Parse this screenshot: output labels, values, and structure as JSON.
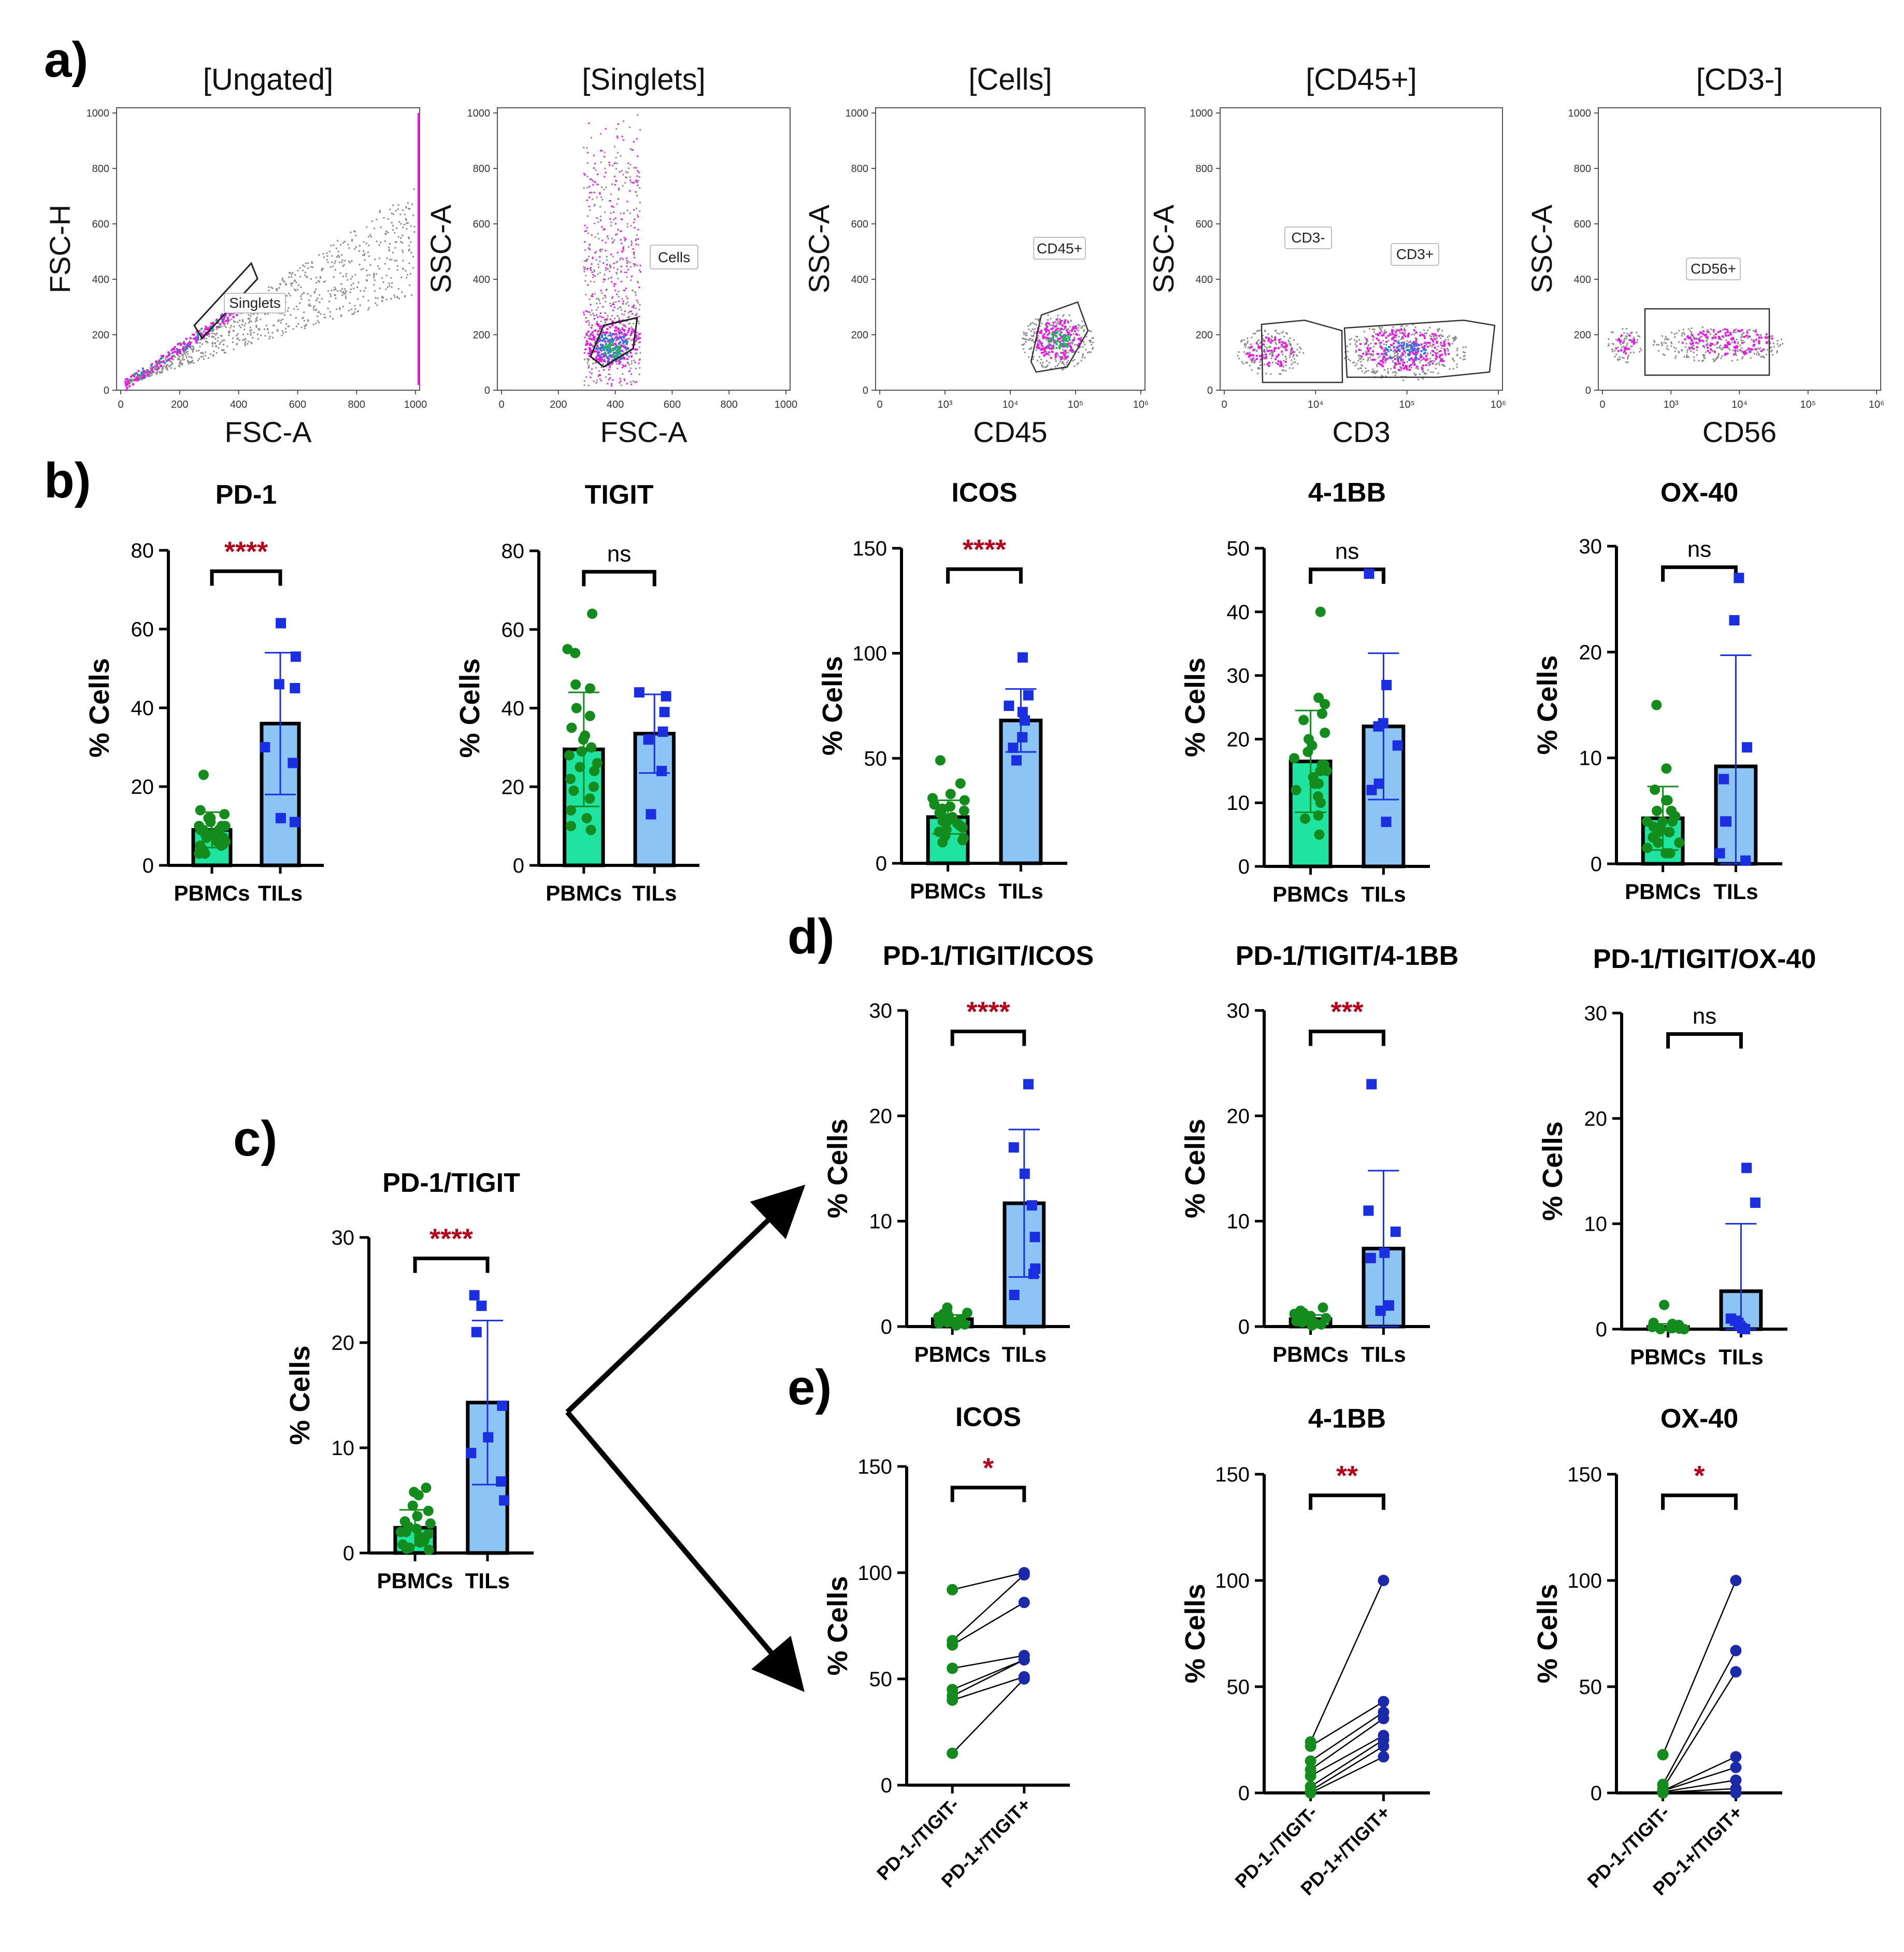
{
  "colors": {
    "pbmc_bar": "#1fe3a0",
    "til_bar": "#8cc4f5",
    "pbmc_point": "#138b1d",
    "til_point": "#1a2fe0",
    "til_err": "#1a2fe0",
    "pbmc_err": "#138b1d",
    "sig": "#b3001b",
    "flow_gray": "#8a8a8a",
    "flow_magenta": "#e21ee0",
    "flow_blue": "#2e7bd6",
    "flow_green": "#1bb85a"
  },
  "panel_letters": [
    "a)",
    "b)",
    "c)",
    "d)",
    "e)"
  ],
  "flow_panels": [
    {
      "title": "[Ungated]",
      "xlabel": "FSC-A",
      "ylabel": "FSC-H",
      "xticks": [
        "0",
        "200",
        "400",
        "600",
        "800",
        "1000"
      ],
      "yticks": [
        "0",
        "200",
        "400",
        "600",
        "800",
        "1000"
      ],
      "gate": "Singlets"
    },
    {
      "title": "[Singlets]",
      "xlabel": "FSC-A",
      "ylabel": "SSC-A",
      "xticks": [
        "0",
        "200",
        "400",
        "600",
        "800",
        "1000"
      ],
      "yticks": [
        "0",
        "200",
        "400",
        "600",
        "800",
        "1000"
      ],
      "gate": "Cells"
    },
    {
      "title": "[Cells]",
      "xlabel": "CD45",
      "ylabel": "SSC-A",
      "xticks": [
        "0",
        "10³",
        "10⁴",
        "10⁵",
        "10⁶"
      ],
      "yticks": [
        "0",
        "200",
        "400",
        "600",
        "800",
        "1000"
      ],
      "gate": "CD45+"
    },
    {
      "title": "[CD45+]",
      "xlabel": "CD3",
      "ylabel": "SSC-A",
      "xticks": [
        "0",
        "10⁴",
        "10⁵",
        "10⁶"
      ],
      "yticks": [
        "0",
        "200",
        "400",
        "600",
        "800",
        "1000"
      ],
      "gate": "CD3-",
      "gate2": "CD3+"
    },
    {
      "title": "[CD3-]",
      "xlabel": "CD56",
      "ylabel": "SSC-A",
      "xticks": [
        "0",
        "10³",
        "10⁴",
        "10⁵",
        "10⁶"
      ],
      "yticks": [
        "0",
        "200",
        "400",
        "600",
        "800",
        "1000"
      ],
      "gate": "CD56+"
    }
  ],
  "chart_data": [
    {
      "id": "b-pd1",
      "type": "bar",
      "title": "PD-1",
      "ylabel": "% Cells",
      "ylim": [
        0,
        80
      ],
      "yticks": [
        0,
        20,
        40,
        60,
        80
      ],
      "categories": [
        "PBMCs",
        "TILs"
      ],
      "means": [
        9,
        36
      ],
      "sd": [
        4.5,
        18
      ],
      "sig": "****",
      "points": [
        [
          23,
          14,
          13,
          12,
          12,
          11,
          10,
          10,
          10,
          9,
          9,
          9,
          8,
          8,
          8,
          7,
          7,
          6,
          6,
          5,
          5,
          4,
          3,
          3
        ],
        [
          61.5,
          53,
          46,
          45,
          30,
          26,
          12,
          11
        ]
      ]
    },
    {
      "id": "b-tigit",
      "type": "bar",
      "title": "TIGIT",
      "ylabel": "% Cells",
      "ylim": [
        0,
        80
      ],
      "yticks": [
        0,
        20,
        40,
        60,
        80
      ],
      "categories": [
        "PBMCs",
        "TILs"
      ],
      "means": [
        29.5,
        33.5
      ],
      "sd": [
        14.5,
        10
      ],
      "sig": "ns",
      "points": [
        [
          64,
          55,
          54,
          46,
          45,
          40,
          38,
          35,
          33,
          32,
          30,
          29,
          28,
          26,
          25,
          24,
          22,
          20,
          19,
          17,
          14,
          12,
          10,
          9
        ],
        [
          44,
          43,
          39,
          34,
          32,
          24,
          13
        ]
      ]
    },
    {
      "id": "b-icos",
      "type": "bar",
      "title": "ICOS",
      "ylabel": "% Cells",
      "ylim": [
        0,
        150
      ],
      "yticks": [
        0,
        50,
        100,
        150
      ],
      "categories": [
        "PBMCs",
        "TILs"
      ],
      "means": [
        22,
        68
      ],
      "sd": [
        8,
        15
      ],
      "sig": "****",
      "points": [
        [
          49,
          38,
          33,
          31,
          30,
          28,
          27,
          26,
          25,
          24,
          23,
          22,
          21,
          20,
          20,
          19,
          18,
          17,
          16,
          15,
          13,
          12,
          11,
          10
        ],
        [
          98,
          80,
          75,
          72,
          68,
          60,
          55,
          49
        ]
      ]
    },
    {
      "id": "b-41bb",
      "type": "bar",
      "title": "4-1BB",
      "ylabel": "% Cells",
      "ylim": [
        0,
        50
      ],
      "yticks": [
        0,
        10,
        20,
        30,
        40,
        50
      ],
      "categories": [
        "PBMCs",
        "TILs"
      ],
      "means": [
        16.5,
        22
      ],
      "sd": [
        8,
        11.5
      ],
      "sig": "ns",
      "points": [
        [
          40,
          26.5,
          25.5,
          24,
          23,
          21,
          20,
          19,
          18,
          17,
          16,
          16,
          15,
          15,
          14,
          13,
          13,
          12,
          11,
          10,
          8,
          7.5,
          5
        ],
        [
          46,
          28.5,
          22.5,
          22,
          19,
          13,
          12,
          7
        ]
      ]
    },
    {
      "id": "b-ox40",
      "type": "bar",
      "title": "OX-40",
      "ylabel": "% Cells",
      "ylim": [
        0,
        30
      ],
      "yticks": [
        0,
        10,
        20,
        30
      ],
      "categories": [
        "PBMCs",
        "TILs"
      ],
      "means": [
        4.3,
        9.2
      ],
      "sd": [
        3,
        10.5
      ],
      "sig": "ns",
      "points": [
        [
          15,
          9,
          7,
          6,
          6,
          5,
          5,
          5,
          4.5,
          4,
          4,
          4,
          3.5,
          3.5,
          3,
          3,
          3,
          2.5,
          2,
          2,
          1.5,
          1,
          1
        ],
        [
          27,
          23,
          11,
          8,
          4,
          4,
          1,
          0.3
        ]
      ]
    },
    {
      "id": "c-pd1tigit",
      "type": "bar",
      "title": "PD-1/TIGIT",
      "ylabel": "% Cells",
      "ylim": [
        0,
        30
      ],
      "yticks": [
        0,
        10,
        20,
        30
      ],
      "categories": [
        "PBMCs",
        "TILs"
      ],
      "means": [
        2.4,
        14.3
      ],
      "sd": [
        1.7,
        7.8
      ],
      "sig": "****",
      "points": [
        [
          6.2,
          5.8,
          5.5,
          4.5,
          4,
          3.5,
          3,
          2.8,
          2.5,
          2.3,
          2,
          2,
          1.8,
          1.5,
          1.2,
          1,
          0.8,
          0.5,
          0.4,
          0.3
        ],
        [
          24.5,
          23.5,
          21,
          14,
          11,
          9.5,
          6.8,
          5
        ]
      ]
    },
    {
      "id": "d-icos",
      "type": "bar",
      "title": "PD-1/TIGIT/ICOS",
      "ylabel": "% Cells",
      "ylim": [
        0,
        30
      ],
      "yticks": [
        0,
        10,
        20,
        30
      ],
      "categories": [
        "PBMCs",
        "TILs"
      ],
      "means": [
        0.7,
        11.7
      ],
      "sd": [
        0.4,
        7
      ],
      "sig": "****",
      "points": [
        [
          1.8,
          1.5,
          1.3,
          1.2,
          1,
          1,
          0.9,
          0.8,
          0.7,
          0.6,
          0.5,
          0.5,
          0.4,
          0.3,
          0.2,
          0.1
        ],
        [
          23,
          17,
          14.5,
          11.5,
          8.5,
          5.5,
          5,
          3
        ]
      ]
    },
    {
      "id": "d-41bb",
      "type": "bar",
      "title": "PD-1/TIGIT/4-1BB",
      "ylabel": "% Cells",
      "ylim": [
        0,
        30
      ],
      "yticks": [
        0,
        10,
        20,
        30
      ],
      "categories": [
        "PBMCs",
        "TILs"
      ],
      "means": [
        0.7,
        7.4
      ],
      "sd": [
        0.4,
        7.4
      ],
      "sig": "***",
      "points": [
        [
          1.8,
          1.5,
          1.3,
          1.2,
          1,
          0.9,
          0.8,
          0.7,
          0.6,
          0.5,
          0.4,
          0.3,
          0.2,
          0.1
        ],
        [
          23,
          11,
          9,
          7,
          6.5,
          2,
          2,
          1.5
        ]
      ]
    },
    {
      "id": "d-ox40",
      "type": "bar",
      "title": "PD-1/TIGIT/OX-40",
      "ylabel": "% Cells",
      "ylim": [
        0,
        30
      ],
      "yticks": [
        0,
        10,
        20,
        30
      ],
      "categories": [
        "PBMCs",
        "TILs"
      ],
      "means": [
        0.2,
        3.6
      ],
      "sd": [
        0.3,
        6.4
      ],
      "sig": "ns",
      "points": [
        [
          2.3,
          0.6,
          0.5,
          0.4,
          0.3,
          0.2,
          0.2,
          0.1,
          0.1,
          0.1,
          0.05,
          0.05,
          0,
          0
        ],
        [
          15.3,
          12,
          1,
          0.8,
          0.6,
          0.3,
          0.1,
          0
        ]
      ]
    },
    {
      "id": "e-icos",
      "type": "paired",
      "title": "ICOS",
      "ylabel": "% Cells",
      "ylim": [
        0,
        150
      ],
      "yticks": [
        0,
        50,
        100,
        150
      ],
      "categories": [
        "PD-1-/TIGIT-",
        "PD-1+/TIGIT+"
      ],
      "sig": "*",
      "pairs": [
        [
          92,
          100
        ],
        [
          68,
          99
        ],
        [
          66,
          86
        ],
        [
          55,
          61
        ],
        [
          45,
          59
        ],
        [
          42,
          59
        ],
        [
          40,
          51
        ],
        [
          15,
          50
        ]
      ]
    },
    {
      "id": "e-41bb",
      "type": "paired",
      "title": "4-1BB",
      "ylabel": "% Cells",
      "ylim": [
        0,
        150
      ],
      "yticks": [
        0,
        50,
        100,
        150
      ],
      "categories": [
        "PD-1-/TIGIT-",
        "PD-1+/TIGIT+"
      ],
      "sig": "**",
      "pairs": [
        [
          24,
          100
        ],
        [
          22,
          43
        ],
        [
          15,
          38
        ],
        [
          11,
          35
        ],
        [
          8,
          27
        ],
        [
          3,
          25
        ],
        [
          1,
          22
        ],
        [
          0,
          17
        ]
      ]
    },
    {
      "id": "e-ox40",
      "type": "paired",
      "title": "OX-40",
      "ylabel": "% Cells",
      "ylim": [
        0,
        150
      ],
      "yticks": [
        0,
        50,
        100,
        150
      ],
      "categories": [
        "PD-1-/TIGIT-",
        "PD-1+/TIGIT+"
      ],
      "sig": "*",
      "pairs": [
        [
          18,
          100
        ],
        [
          4,
          67
        ],
        [
          2,
          57
        ],
        [
          1,
          17
        ],
        [
          1,
          12
        ],
        [
          0.5,
          6
        ],
        [
          0.3,
          2
        ],
        [
          0,
          0
        ]
      ]
    }
  ]
}
